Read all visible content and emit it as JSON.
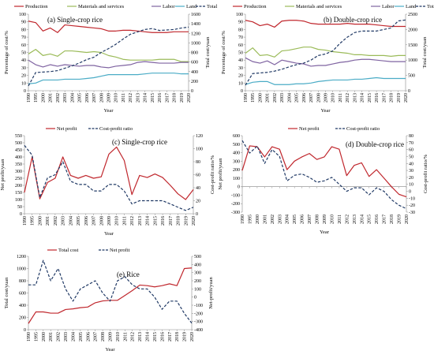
{
  "colors": {
    "red": "#c0272d",
    "green": "#9bbb59",
    "purple": "#7f63a1",
    "cyan": "#4bacc6",
    "navy": "#1f3864"
  },
  "years": [
    "1990",
    "1995",
    "2000",
    "2001",
    "2002",
    "2003",
    "2004",
    "2005",
    "2006",
    "2007",
    "2008",
    "2009",
    "2010",
    "2011",
    "2012",
    "2013",
    "2014",
    "2015",
    "2016",
    "2017",
    "2018",
    "2019",
    "2020"
  ],
  "chart_data": [
    {
      "id": "a",
      "type": "line",
      "title": "(a) Single-crop rice",
      "xlabel": "Year",
      "ylabel": "Percentage of cost/%",
      "y2label": "Total cost/yuan",
      "ylim": [
        0,
        100
      ],
      "yticks": [
        0,
        10,
        20,
        30,
        40,
        50,
        60,
        70,
        80,
        90,
        100
      ],
      "y2lim": [
        0,
        1600
      ],
      "y2ticks": [
        0,
        200,
        400,
        600,
        800,
        1000,
        1200,
        1400,
        1600
      ],
      "legend_position": "top",
      "series": [
        {
          "name": "Production",
          "color": "red",
          "axis": "left",
          "dash": false,
          "values": [
            91,
            89,
            78,
            82,
            76,
            86,
            85,
            84,
            83,
            82,
            81,
            78,
            78,
            79,
            79,
            78,
            77,
            76,
            76,
            76,
            77,
            77,
            77
          ]
        },
        {
          "name": "Materials and services",
          "color": "green",
          "axis": "left",
          "dash": false,
          "values": [
            48,
            54,
            46,
            48,
            45,
            52,
            52,
            51,
            50,
            51,
            50,
            46,
            44,
            41,
            40,
            40,
            40,
            40,
            41,
            41,
            41,
            38,
            38
          ]
        },
        {
          "name": "Labor",
          "color": "purple",
          "axis": "left",
          "dash": false,
          "values": [
            40,
            34,
            31,
            34,
            32,
            34,
            33,
            32,
            33,
            33,
            31,
            30,
            32,
            33,
            34,
            37,
            38,
            37,
            36,
            36,
            36,
            37,
            37
          ]
        },
        {
          "name": "Land",
          "color": "cyan",
          "axis": "left",
          "dash": false,
          "values": [
            9,
            10,
            14,
            14,
            14,
            15,
            15,
            15,
            16,
            17,
            19,
            21,
            21,
            21,
            21,
            21,
            22,
            23,
            23,
            23,
            23,
            22,
            22
          ]
        },
        {
          "name": "Total",
          "color": "navy",
          "axis": "right",
          "dash": true,
          "values": [
            100,
            380,
            390,
            400,
            420,
            470,
            520,
            580,
            650,
            700,
            800,
            880,
            970,
            1080,
            1180,
            1230,
            1280,
            1300,
            1260,
            1270,
            1280,
            1310,
            1330
          ]
        }
      ]
    },
    {
      "id": "b",
      "type": "line",
      "title": "(b) Double-crop rice",
      "xlabel": "Year",
      "ylabel": "Percentage of cost/%",
      "y2label": "Total cost/yuan",
      "ylim": [
        0,
        100
      ],
      "yticks": [
        0,
        10,
        20,
        30,
        40,
        50,
        60,
        70,
        80,
        90,
        100
      ],
      "y2lim": [
        0,
        2500
      ],
      "y2ticks": [
        0,
        500,
        1000,
        1500,
        2000,
        2500
      ],
      "legend_position": "top",
      "series": [
        {
          "name": "Production",
          "color": "red",
          "axis": "left",
          "dash": false,
          "values": [
            92,
            90,
            85,
            87,
            83,
            91,
            92,
            92,
            91,
            88,
            87,
            87,
            87,
            87,
            88,
            87,
            87,
            87,
            86,
            85,
            84,
            84,
            84
          ]
        },
        {
          "name": "Materials and services",
          "color": "green",
          "axis": "left",
          "dash": false,
          "values": [
            49,
            56,
            46,
            47,
            44,
            52,
            53,
            55,
            57,
            57,
            54,
            53,
            51,
            50,
            49,
            47,
            47,
            46,
            46,
            46,
            45,
            46,
            46
          ]
        },
        {
          "name": "Labor",
          "color": "purple",
          "axis": "left",
          "dash": false,
          "values": [
            43,
            38,
            36,
            39,
            34,
            40,
            38,
            36,
            35,
            32,
            33,
            33,
            35,
            37,
            38,
            40,
            41,
            41,
            40,
            39,
            38,
            38,
            38
          ]
        },
        {
          "name": "Land",
          "color": "cyan",
          "axis": "left",
          "dash": false,
          "values": [
            8,
            11,
            12,
            12,
            8,
            8,
            8,
            9,
            9,
            10,
            12,
            13,
            14,
            14,
            14,
            15,
            15,
            16,
            17,
            16,
            16,
            16,
            16
          ]
        },
        {
          "name": "Total",
          "color": "navy",
          "axis": "right",
          "dash": true,
          "values": [
            180,
            560,
            580,
            600,
            640,
            700,
            780,
            850,
            900,
            1000,
            1150,
            1200,
            1300,
            1550,
            1750,
            1900,
            1950,
            1950,
            1950,
            2000,
            2050,
            2280,
            2310
          ]
        }
      ]
    },
    {
      "id": "c",
      "type": "line",
      "title": "(c) Single-crop rice",
      "xlabel": "Year",
      "ylabel": "Net profit/yuan",
      "y2label": "Cost-profit ratio/%",
      "ylim": [
        0,
        550
      ],
      "yticks": [
        0,
        50,
        100,
        150,
        200,
        250,
        300,
        350,
        400,
        450,
        500,
        550
      ],
      "y2lim": [
        0,
        120
      ],
      "y2ticks": [
        0,
        20,
        40,
        60,
        80,
        100,
        120
      ],
      "legend_position": "top",
      "series": [
        {
          "name": "Net profit",
          "color": "red",
          "axis": "left",
          "dash": false,
          "values": [
            150,
            400,
            105,
            220,
            250,
            400,
            270,
            250,
            270,
            250,
            260,
            420,
            470,
            375,
            135,
            270,
            255,
            280,
            255,
            200,
            140,
            100,
            170
          ]
        },
        {
          "name": "Cost-profit ratio",
          "color": "navy",
          "axis": "right",
          "dash": true,
          "values": [
            105,
            90,
            25,
            55,
            60,
            80,
            50,
            45,
            45,
            35,
            35,
            45,
            45,
            35,
            15,
            20,
            20,
            20,
            20,
            15,
            10,
            5,
            10
          ]
        }
      ]
    },
    {
      "id": "d",
      "type": "line",
      "title": "(d) Double-crop rice",
      "xlabel": "Year",
      "ylabel": "Net profit/yuan",
      "y2label": "Cost-profit ratio/%",
      "ylim": [
        -300,
        600
      ],
      "yticks": [
        -300,
        -200,
        -100,
        0,
        100,
        200,
        300,
        400,
        500,
        600
      ],
      "y2lim": [
        -30,
        80
      ],
      "y2ticks": [
        -30,
        -20,
        -10,
        0,
        10,
        20,
        30,
        40,
        50,
        60,
        70,
        80
      ],
      "legend_position": "top",
      "series": [
        {
          "name": "Net profit",
          "color": "red",
          "axis": "left",
          "dash": false,
          "values": [
            190,
            480,
            470,
            350,
            470,
            440,
            200,
            300,
            350,
            390,
            320,
            350,
            470,
            440,
            130,
            250,
            280,
            120,
            200,
            100,
            0,
            -90,
            -120
          ]
        },
        {
          "name": "Cost-profit ratio",
          "color": "navy",
          "axis": "right",
          "dash": true,
          "values": [
            73,
            55,
            65,
            40,
            60,
            50,
            15,
            23,
            25,
            20,
            13,
            15,
            20,
            10,
            0,
            5,
            5,
            -5,
            5,
            0,
            -12,
            -20,
            -25
          ]
        }
      ]
    },
    {
      "id": "e",
      "type": "line",
      "title": "(e) Rice",
      "xlabel": "Year",
      "ylabel": "Total cost/yuan",
      "y2label": "Net-profit/yuan",
      "ylim": [
        0,
        1200
      ],
      "yticks": [
        0,
        200,
        400,
        600,
        800,
        1000,
        1200
      ],
      "y2lim": [
        -400,
        500
      ],
      "y2ticks": [
        -400,
        -300,
        -200,
        -100,
        0,
        100,
        200,
        300,
        400,
        500
      ],
      "legend_position": "top",
      "series": [
        {
          "name": "Total cost",
          "color": "red",
          "axis": "left",
          "dash": false,
          "values": [
            100,
            290,
            290,
            270,
            270,
            330,
            340,
            360,
            370,
            440,
            470,
            480,
            480,
            560,
            640,
            730,
            720,
            700,
            720,
            750,
            720,
            1000,
            1010
          ]
        },
        {
          "name": "Net profit",
          "color": "navy",
          "axis": "right",
          "dash": true,
          "values": [
            150,
            150,
            450,
            200,
            350,
            100,
            -50,
            100,
            150,
            200,
            50,
            -50,
            200,
            250,
            150,
            100,
            100,
            0,
            -150,
            -50,
            -50,
            -200,
            -320
          ]
        }
      ]
    }
  ]
}
